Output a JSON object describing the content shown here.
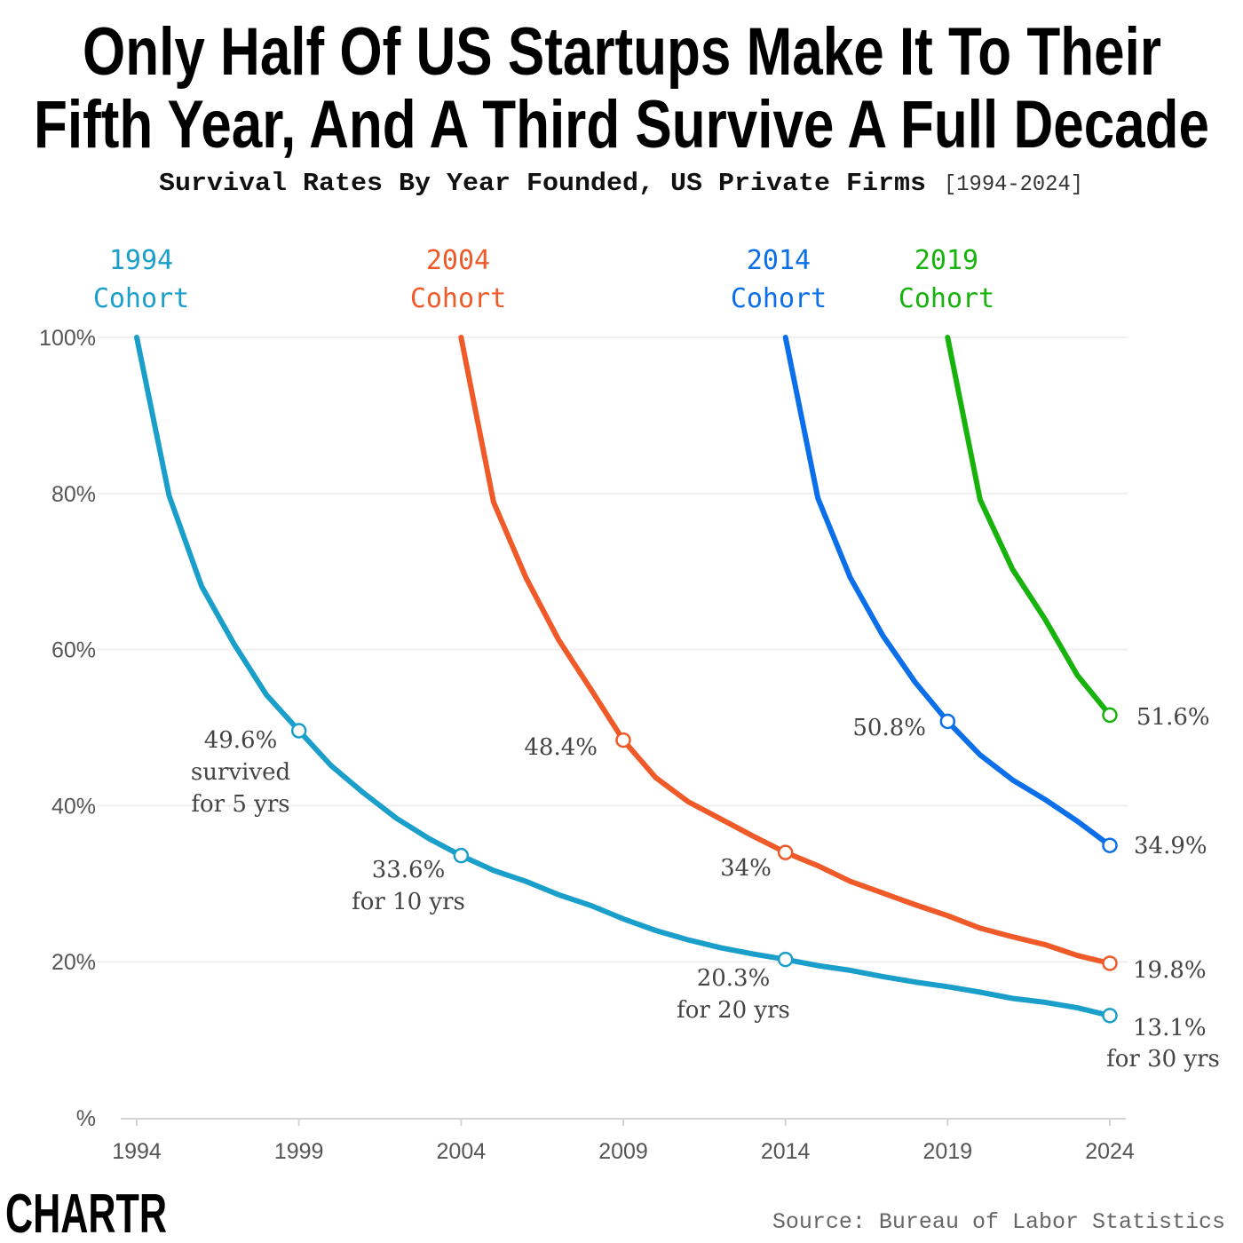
{
  "title_lines": [
    "Only Half Of US Startups Make It To Their",
    "Fifth Year, And A Third Survive A Full Decade"
  ],
  "subtitle": "Survival Rates By Year Founded, US Private Firms",
  "subtitle_range": "[1994-2024]",
  "source": "Source: Bureau of Labor Statistics",
  "logo": "CHARTR",
  "chart_data": {
    "type": "line",
    "title": "Only Half Of US Startups Make It To Their Fifth Year, And A Third Survive A Full Decade",
    "subtitle": "Survival Rates By Year Founded, US Private Firms [1994-2024]",
    "ylabel": "%",
    "xlim": [
      1994,
      2024
    ],
    "ylim": [
      0,
      100
    ],
    "grid": true,
    "x_ticks": [
      "1994",
      "1999",
      "2004",
      "2009",
      "2014",
      "2019",
      "2024"
    ],
    "y_ticks": [
      "%",
      "20%",
      "40%",
      "60%",
      "80%",
      "100%"
    ],
    "series": [
      {
        "name": "1994 Cohort",
        "label_year": "1994",
        "label_word": "Cohort",
        "color": "#1a9fca",
        "start": 1994,
        "values": [
          100,
          79.7,
          68.1,
          60.7,
          54.2,
          49.6,
          45.1,
          41.6,
          38.4,
          35.8,
          33.6,
          31.7,
          30.3,
          28.6,
          27.2,
          25.5,
          24.0,
          22.8,
          21.8,
          21.0,
          20.3,
          19.5,
          18.9,
          18.1,
          17.4,
          16.8,
          16.1,
          15.3,
          14.8,
          14.1,
          13.1
        ],
        "markers": [
          {
            "year": 1999,
            "lines": [
              "49.6%",
              "survived",
              "for 5 yrs"
            ]
          },
          {
            "year": 2004,
            "lines": [
              "33.6%",
              "for 10 yrs"
            ]
          },
          {
            "year": 2014,
            "lines": [
              "20.3%",
              "for 20 yrs"
            ]
          },
          {
            "year": 2024,
            "lines": [
              "13.1%",
              "for 30 yrs"
            ]
          }
        ]
      },
      {
        "name": "2004 Cohort",
        "label_year": "2004",
        "label_word": "Cohort",
        "color": "#f05a28",
        "start": 2004,
        "values": [
          100,
          78.9,
          69.2,
          61.3,
          54.9,
          48.4,
          43.6,
          40.5,
          38.3,
          36.1,
          34.0,
          32.3,
          30.3,
          28.8,
          27.3,
          25.9,
          24.3,
          23.2,
          22.2,
          20.8,
          19.8
        ],
        "markers": [
          {
            "year": 2009,
            "lines": [
              "48.4%"
            ]
          },
          {
            "year": 2014,
            "lines": [
              "34%"
            ]
          },
          {
            "year": 2024,
            "lines": [
              "19.8%"
            ]
          }
        ]
      },
      {
        "name": "2014 Cohort",
        "label_year": "2014",
        "label_word": "Cohort",
        "color": "#0a6fe8",
        "start": 2014,
        "values": [
          100,
          79.4,
          69.2,
          61.8,
          55.8,
          50.8,
          46.5,
          43.3,
          40.8,
          38.0,
          34.9
        ],
        "markers": [
          {
            "year": 2019,
            "lines": [
              "50.8%"
            ]
          },
          {
            "year": 2024,
            "lines": [
              "34.9%"
            ]
          }
        ]
      },
      {
        "name": "2019 Cohort",
        "label_year": "2019",
        "label_word": "Cohort",
        "color": "#17b20c",
        "start": 2019,
        "values": [
          100,
          79.2,
          70.3,
          63.9,
          56.7,
          51.6
        ],
        "markers": [
          {
            "year": 2024,
            "lines": [
              "51.6%"
            ]
          }
        ]
      }
    ]
  }
}
